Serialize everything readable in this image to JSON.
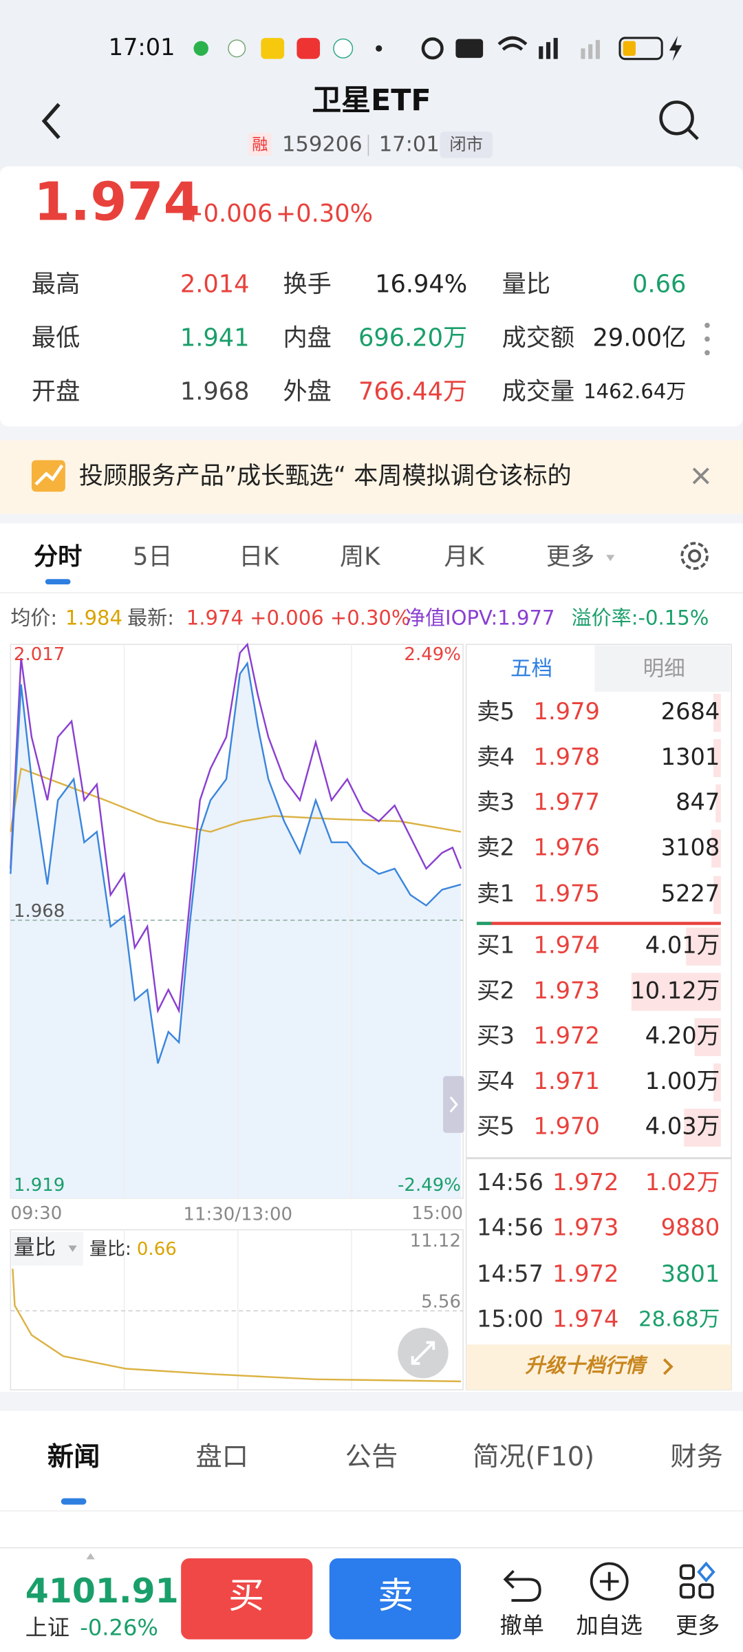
{
  "status_bar": {
    "time": "17:01"
  },
  "header": {
    "title": "卫星ETF",
    "tag": "融",
    "code": "159206",
    "time": "17:01",
    "state": "闭市"
  },
  "quote": {
    "price": "1.974",
    "change": "+0.006",
    "change_pct": "+0.30%"
  },
  "stats": [
    [
      {
        "label": "最高",
        "value": "2.014"
      },
      {
        "label": "换手",
        "value": "16.94%"
      },
      {
        "label": "量比",
        "value": "0.66"
      }
    ],
    [
      {
        "label": "最低",
        "value": "1.941"
      },
      {
        "label": "内盘",
        "value": "696.20万"
      },
      {
        "label": "成交额",
        "value": "29.00亿"
      }
    ],
    [
      {
        "label": "开盘",
        "value": "1.968"
      },
      {
        "label": "外盘",
        "value": "766.44万"
      },
      {
        "label": "成交量",
        "value": "1462.64万"
      }
    ]
  ],
  "banner": "投顾服务产品”成长甄选“ 本周模拟调仓该标的",
  "chart_tabs": [
    "分时",
    "5日",
    "日K",
    "周K",
    "月K",
    "更多"
  ],
  "info": {
    "avg_label": "均价:",
    "avg": "1.984",
    "latest_label": "最新:",
    "latest": "1.974 +0.006 +0.30%",
    "iopv": "净值IOPV:1.977",
    "premium": "溢价率:-0.15%"
  },
  "chart": {
    "high": "2.017",
    "high_pct": "2.49%",
    "open": "1.968",
    "low": "1.919",
    "low_pct": "-2.49%",
    "times": [
      "09:30",
      "11:30/13:00",
      "15:00"
    ]
  },
  "volume": {
    "selector": "量比",
    "label": "量比:",
    "value": "0.66",
    "max": "11.12",
    "mid": "5.56"
  },
  "order_book": {
    "tabs": [
      "五档",
      "明细"
    ],
    "asks": [
      [
        "卖5",
        "1.979",
        "2684"
      ],
      [
        "卖4",
        "1.978",
        "1301"
      ],
      [
        "卖3",
        "1.977",
        "847"
      ],
      [
        "卖2",
        "1.976",
        "3108"
      ],
      [
        "卖1",
        "1.975",
        "5227"
      ]
    ],
    "bids": [
      [
        "买1",
        "1.974",
        "4.01万"
      ],
      [
        "买2",
        "1.973",
        "10.12万"
      ],
      [
        "买3",
        "1.972",
        "4.20万"
      ],
      [
        "买4",
        "1.971",
        "1.00万"
      ],
      [
        "买5",
        "1.970",
        "4.03万"
      ]
    ],
    "trades": [
      [
        "14:56",
        "1.972",
        "1.02万"
      ],
      [
        "14:56",
        "1.973",
        "9880"
      ],
      [
        "14:57",
        "1.972",
        "3801"
      ],
      [
        "15:00",
        "1.974",
        "28.68万"
      ]
    ],
    "upgrade": "升级十档行情"
  },
  "news_tabs": [
    "新闻",
    "盘口",
    "公告",
    "简况(F10)",
    "财务"
  ],
  "footer": {
    "index_value": "4101.91",
    "index_name": "上证",
    "index_change": "-0.26%",
    "buy": "买",
    "sell": "卖",
    "actions": [
      "撤单",
      "加自选",
      "更多"
    ]
  }
}
